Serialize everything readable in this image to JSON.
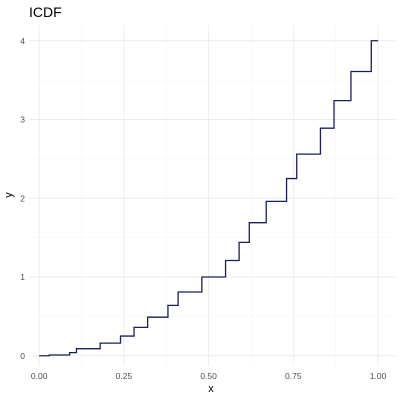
{
  "chart_data": {
    "type": "line",
    "title": "ICDF",
    "xlabel": "x",
    "ylabel": "y",
    "xlim": [
      -0.03,
      1.05
    ],
    "ylim": [
      -0.13,
      4.2
    ],
    "x_ticks": [
      0.0,
      0.25,
      0.5,
      0.75,
      1.0
    ],
    "x_tick_labels": [
      "0.00",
      "0.25",
      "0.50",
      "0.75",
      "1.00"
    ],
    "y_ticks": [
      0,
      1,
      2,
      3,
      4
    ],
    "y_tick_labels": [
      "0",
      "1",
      "2",
      "3",
      "4"
    ],
    "grid": true,
    "line_color": "#1a1f5a",
    "step_points": [
      {
        "x": 0.0,
        "y": 0.0
      },
      {
        "x": 0.03,
        "y": 0.01
      },
      {
        "x": 0.09,
        "y": 0.04
      },
      {
        "x": 0.11,
        "y": 0.09
      },
      {
        "x": 0.18,
        "y": 0.16
      },
      {
        "x": 0.24,
        "y": 0.25
      },
      {
        "x": 0.28,
        "y": 0.36
      },
      {
        "x": 0.32,
        "y": 0.49
      },
      {
        "x": 0.38,
        "y": 0.64
      },
      {
        "x": 0.41,
        "y": 0.81
      },
      {
        "x": 0.48,
        "y": 1.0
      },
      {
        "x": 0.55,
        "y": 1.21
      },
      {
        "x": 0.59,
        "y": 1.44
      },
      {
        "x": 0.62,
        "y": 1.69
      },
      {
        "x": 0.67,
        "y": 1.96
      },
      {
        "x": 0.73,
        "y": 2.25
      },
      {
        "x": 0.76,
        "y": 2.56
      },
      {
        "x": 0.83,
        "y": 2.89
      },
      {
        "x": 0.87,
        "y": 3.24
      },
      {
        "x": 0.92,
        "y": 3.61
      },
      {
        "x": 0.98,
        "y": 4.0
      }
    ],
    "x_end": 1.0
  }
}
